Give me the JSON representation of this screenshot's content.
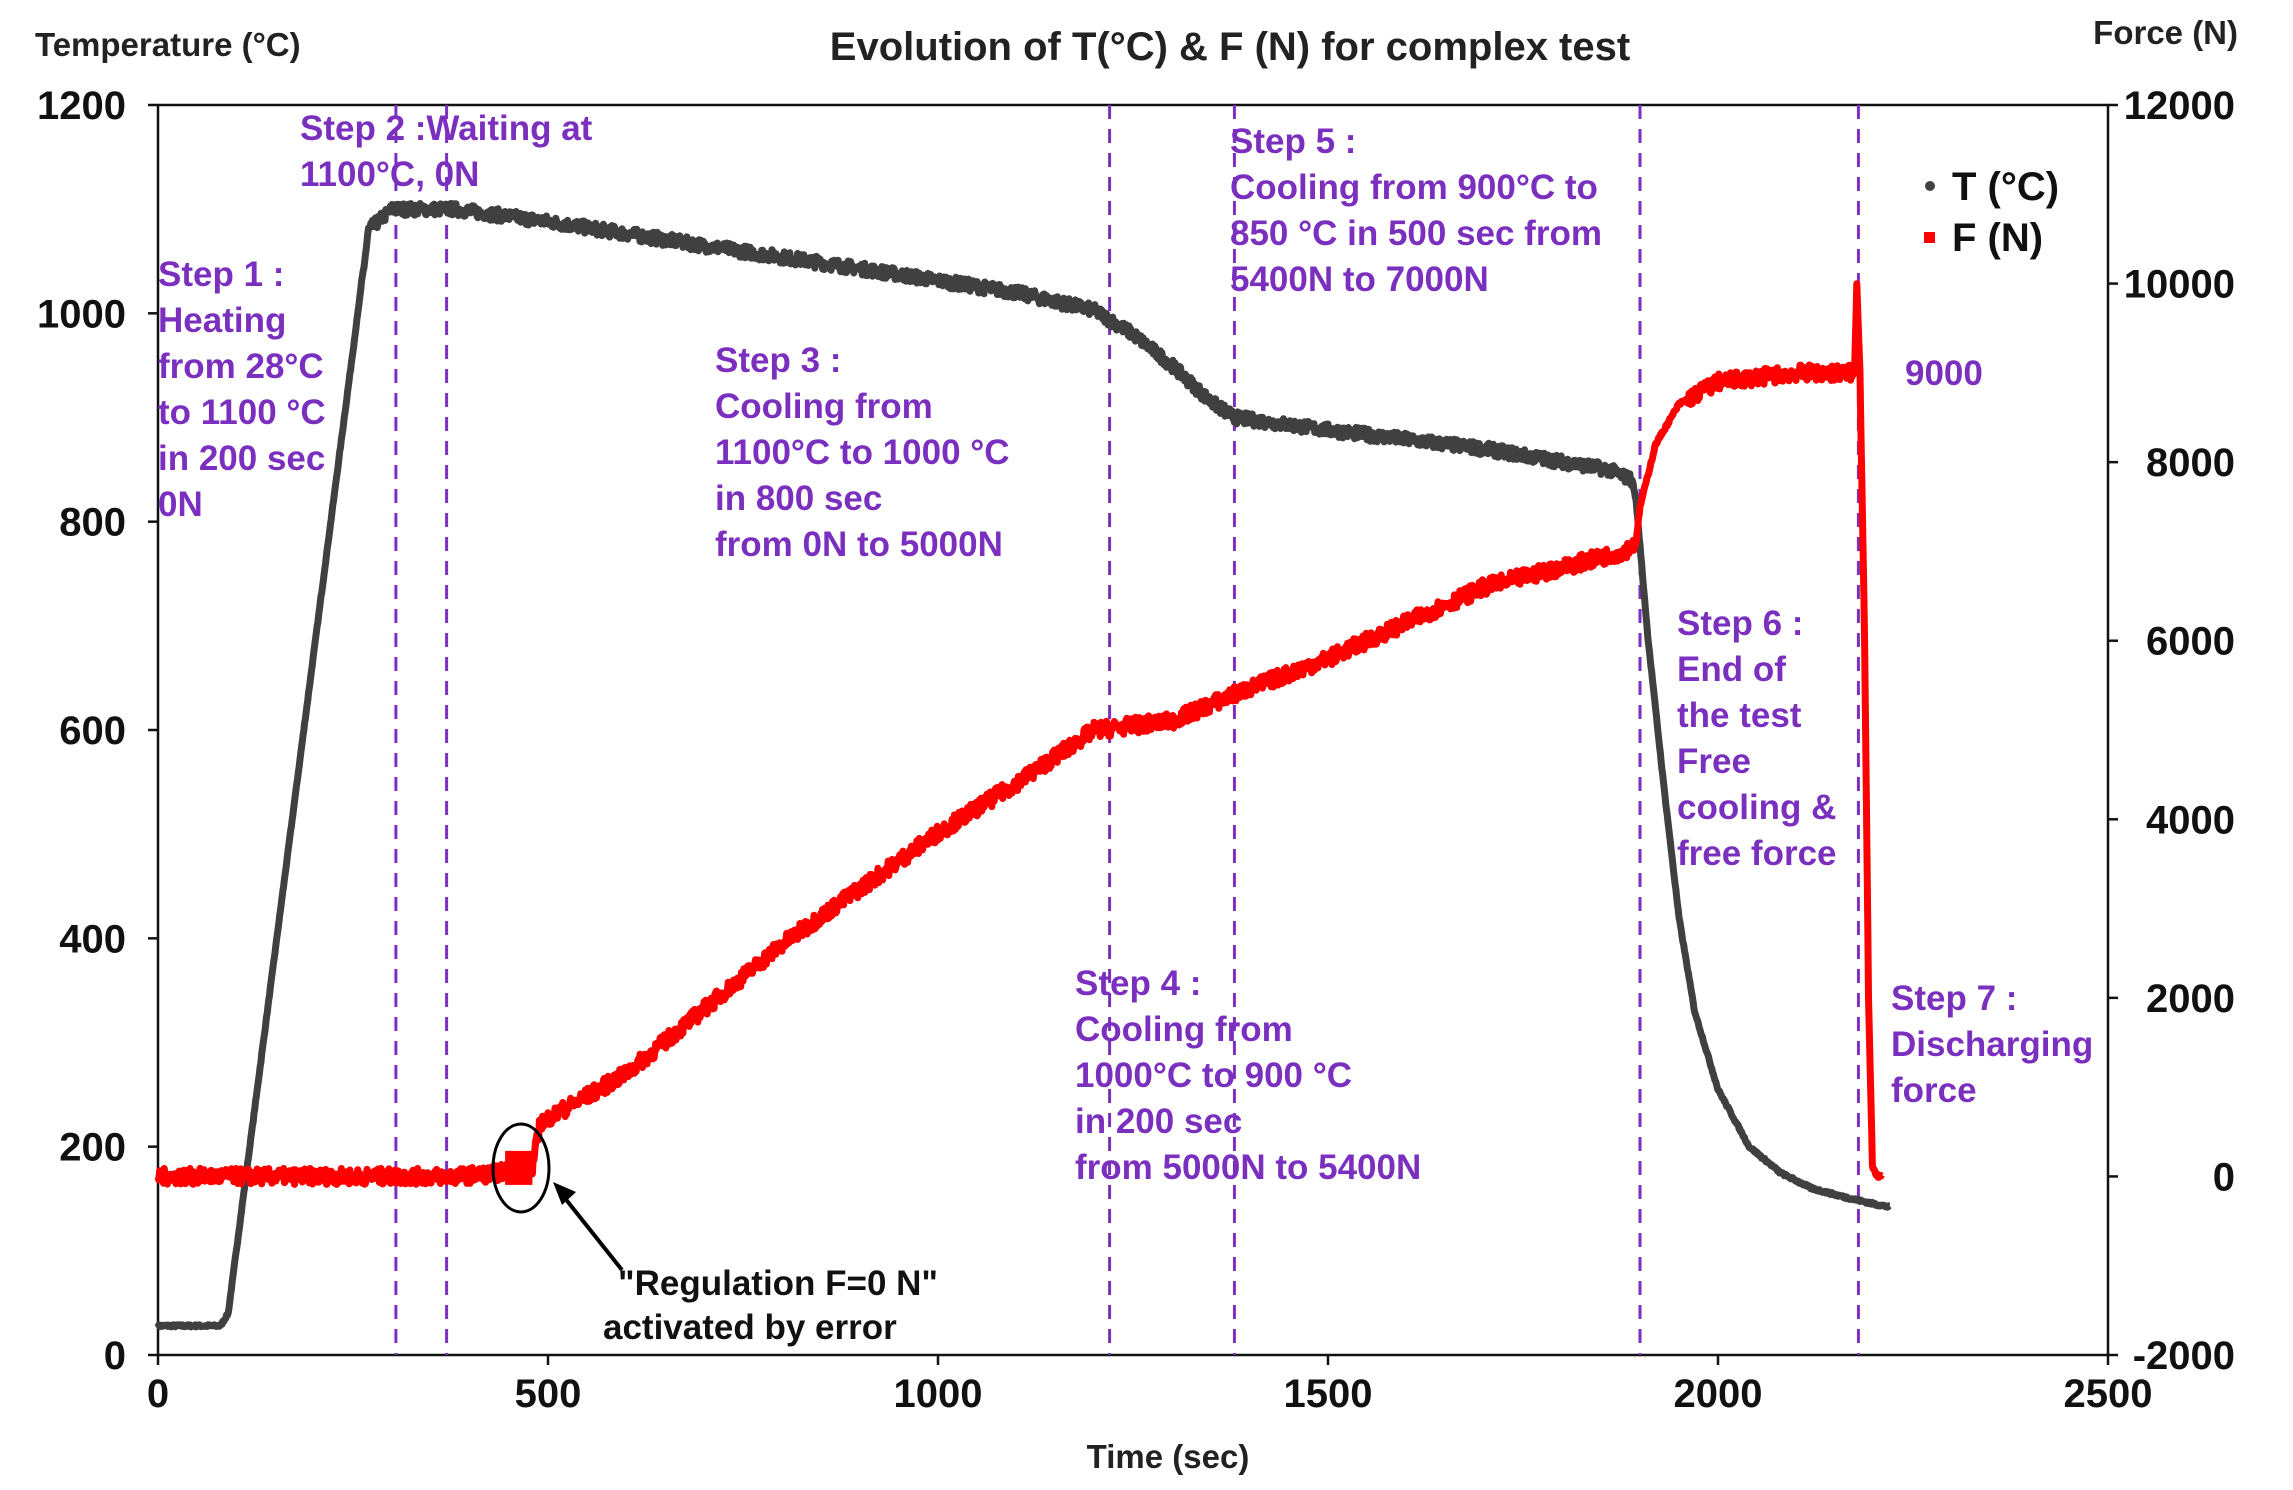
{
  "chart_data": {
    "type": "line",
    "title": "Evolution of T(°C) & F (N) for complex test",
    "xlabel": "Time (sec)",
    "ylabel": "Temperature (°C)",
    "y2label": "Force (N)",
    "xlim": [
      0,
      2500
    ],
    "ylim": [
      0,
      1200
    ],
    "y2lim": [
      -2000,
      12000
    ],
    "xticks": [
      "0",
      "500",
      "1000",
      "1500",
      "2000",
      "2500"
    ],
    "yticks": [
      "0",
      "200",
      "400",
      "600",
      "800",
      "1000",
      "1200"
    ],
    "y2ticks": [
      "-2000",
      "0",
      "2000",
      "4000",
      "6000",
      "8000",
      "10000",
      "12000"
    ],
    "legend_position": "top-right",
    "grid": false,
    "colors": {
      "temperature": "#404040",
      "force": "#ff0000",
      "steps": "#7b2fbf"
    },
    "series": [
      {
        "name": "T (°C)",
        "axis": "left",
        "color": "#404040",
        "points": [
          [
            0,
            28
          ],
          [
            80,
            28
          ],
          [
            90,
            40
          ],
          [
            270,
            1080
          ],
          [
            300,
            1100
          ],
          [
            380,
            1100
          ],
          [
            500,
            1088
          ],
          [
            700,
            1065
          ],
          [
            900,
            1043
          ],
          [
            1100,
            1020
          ],
          [
            1200,
            1003
          ],
          [
            1250,
            980
          ],
          [
            1300,
            950
          ],
          [
            1350,
            915
          ],
          [
            1380,
            900
          ],
          [
            1500,
            888
          ],
          [
            1700,
            870
          ],
          [
            1860,
            850
          ],
          [
            1890,
            840
          ],
          [
            1895,
            820
          ],
          [
            1910,
            690
          ],
          [
            1930,
            550
          ],
          [
            1950,
            420
          ],
          [
            1970,
            330
          ],
          [
            2000,
            255
          ],
          [
            2040,
            200
          ],
          [
            2080,
            175
          ],
          [
            2120,
            160
          ],
          [
            2160,
            152
          ],
          [
            2200,
            145
          ],
          [
            2220,
            142
          ]
        ]
      },
      {
        "name": "F (N)",
        "axis": "right",
        "color": "#ff0000",
        "points": [
          [
            0,
            0
          ],
          [
            200,
            0
          ],
          [
            300,
            0
          ],
          [
            380,
            0
          ],
          [
            430,
            30
          ],
          [
            470,
            100
          ],
          [
            480,
            100
          ],
          [
            490,
            600
          ],
          [
            600,
            1150
          ],
          [
            800,
            2600
          ],
          [
            1000,
            3850
          ],
          [
            1100,
            4400
          ],
          [
            1200,
            5000
          ],
          [
            1300,
            5100
          ],
          [
            1380,
            5400
          ],
          [
            1500,
            5800
          ],
          [
            1700,
            6600
          ],
          [
            1880,
            7000
          ],
          [
            1895,
            7100
          ],
          [
            1900,
            7500
          ],
          [
            1920,
            8200
          ],
          [
            1950,
            8650
          ],
          [
            2000,
            8900
          ],
          [
            2100,
            9000
          ],
          [
            2175,
            9000
          ],
          [
            2178,
            10000
          ],
          [
            2182,
            9000
          ],
          [
            2188,
            6000
          ],
          [
            2193,
            2000
          ],
          [
            2198,
            100
          ],
          [
            2205,
            0
          ],
          [
            2210,
            0
          ]
        ]
      }
    ],
    "step_lines_x": [
      305,
      370,
      1220,
      1380,
      1900,
      2180
    ],
    "annotations": [
      {
        "text": [
          "Step 1 :",
          "Heating",
          "from 28°C",
          "to 1100 °C",
          "in 200 sec",
          "0N"
        ]
      },
      {
        "text": [
          "Step 2 :Waiting at",
          "1100°C, 0N"
        ]
      },
      {
        "text": [
          "Step 3 :",
          "Cooling from",
          "1100°C to 1000 °C",
          "in 800 sec",
          "from 0N to 5000N"
        ]
      },
      {
        "text": [
          "Step 4 :",
          "Cooling from",
          "1000°C to 900 °C",
          " in 200 sec",
          "from 5000N to 5400N"
        ]
      },
      {
        "text": [
          "Step 5 :",
          "Cooling from 900°C to",
          "850 °C in 500 sec from",
          "5400N to 7000N"
        ]
      },
      {
        "text": [
          "Step 6 :",
          "End of",
          "the test",
          "Free",
          "cooling &",
          "free force"
        ]
      },
      {
        "text": [
          "Step 7 :",
          "Discharging",
          "force"
        ]
      },
      {
        "text": [
          "9000"
        ]
      },
      {
        "text": [
          "\"Regulation F=0 N\"",
          "activated by error"
        ]
      }
    ]
  }
}
